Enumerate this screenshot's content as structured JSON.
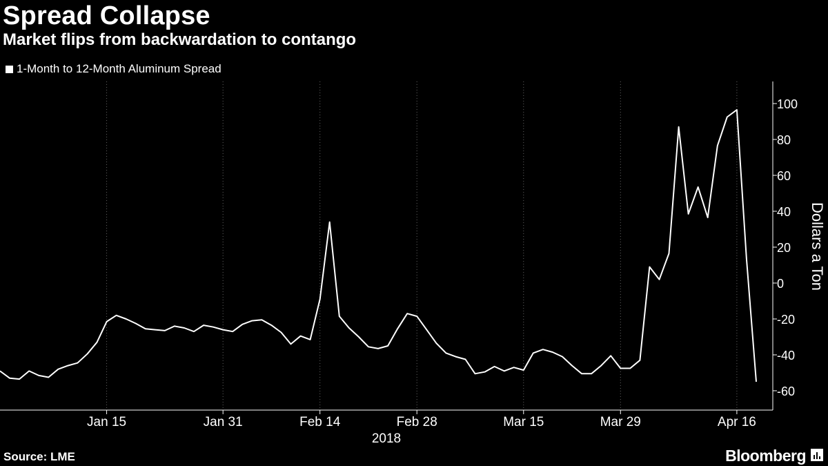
{
  "header": {
    "title": "Spread Collapse",
    "subtitle": "Market flips from backwardation to contango"
  },
  "footer": {
    "source": "Source: LME",
    "brand": "Bloomberg"
  },
  "chart_data": {
    "type": "line",
    "title": "Spread Collapse",
    "subtitle": "Market flips from backwardation to contango",
    "legend": "1-Month to 12-Month Aluminum Spread",
    "ylabel": "Dollars a Ton",
    "xlabel": "2018",
    "ylim": [
      -70,
      110
    ],
    "yticks": [
      -60,
      -40,
      -20,
      0,
      20,
      40,
      60,
      80,
      100
    ],
    "xtick_labels": [
      "Jan 15",
      "Jan 31",
      "Feb 14",
      "Feb 28",
      "Mar 15",
      "Mar 29",
      "Apr 16"
    ],
    "xtick_index": [
      11,
      23,
      33,
      43,
      54,
      64,
      76
    ],
    "grid": "vertical dotted",
    "line_color": "#ffffff",
    "series": [
      {
        "name": "1-Month to 12-Month Aluminum Spread",
        "values": [
          -49,
          -53,
          -53.5,
          -49,
          -51.5,
          -52.5,
          -48,
          -46,
          -44.5,
          -39.5,
          -33,
          -21.5,
          -18,
          -20,
          -22.5,
          -25.5,
          -26,
          -26.5,
          -24,
          -25,
          -27,
          -23.5,
          -24.5,
          -26,
          -27,
          -23,
          -21,
          -20.5,
          -23.5,
          -27.5,
          -34,
          -29.5,
          -31.5,
          -9,
          34,
          -18.5,
          -25,
          -30,
          -35.5,
          -36.5,
          -35,
          -25.5,
          -17,
          -18.5,
          -26,
          -33.5,
          -39,
          -41,
          -42.5,
          -50.5,
          -49.5,
          -46.5,
          -49,
          -47,
          -48.5,
          -39,
          -37,
          -38.5,
          -41,
          -46,
          -50.5,
          -50.5,
          -46,
          -40.5,
          -47.5,
          -47.5,
          -43,
          9,
          2,
          16.5,
          87,
          38.5,
          53.5,
          36.5,
          76.5,
          92.5,
          96.5,
          13.5,
          -55
        ]
      }
    ]
  }
}
